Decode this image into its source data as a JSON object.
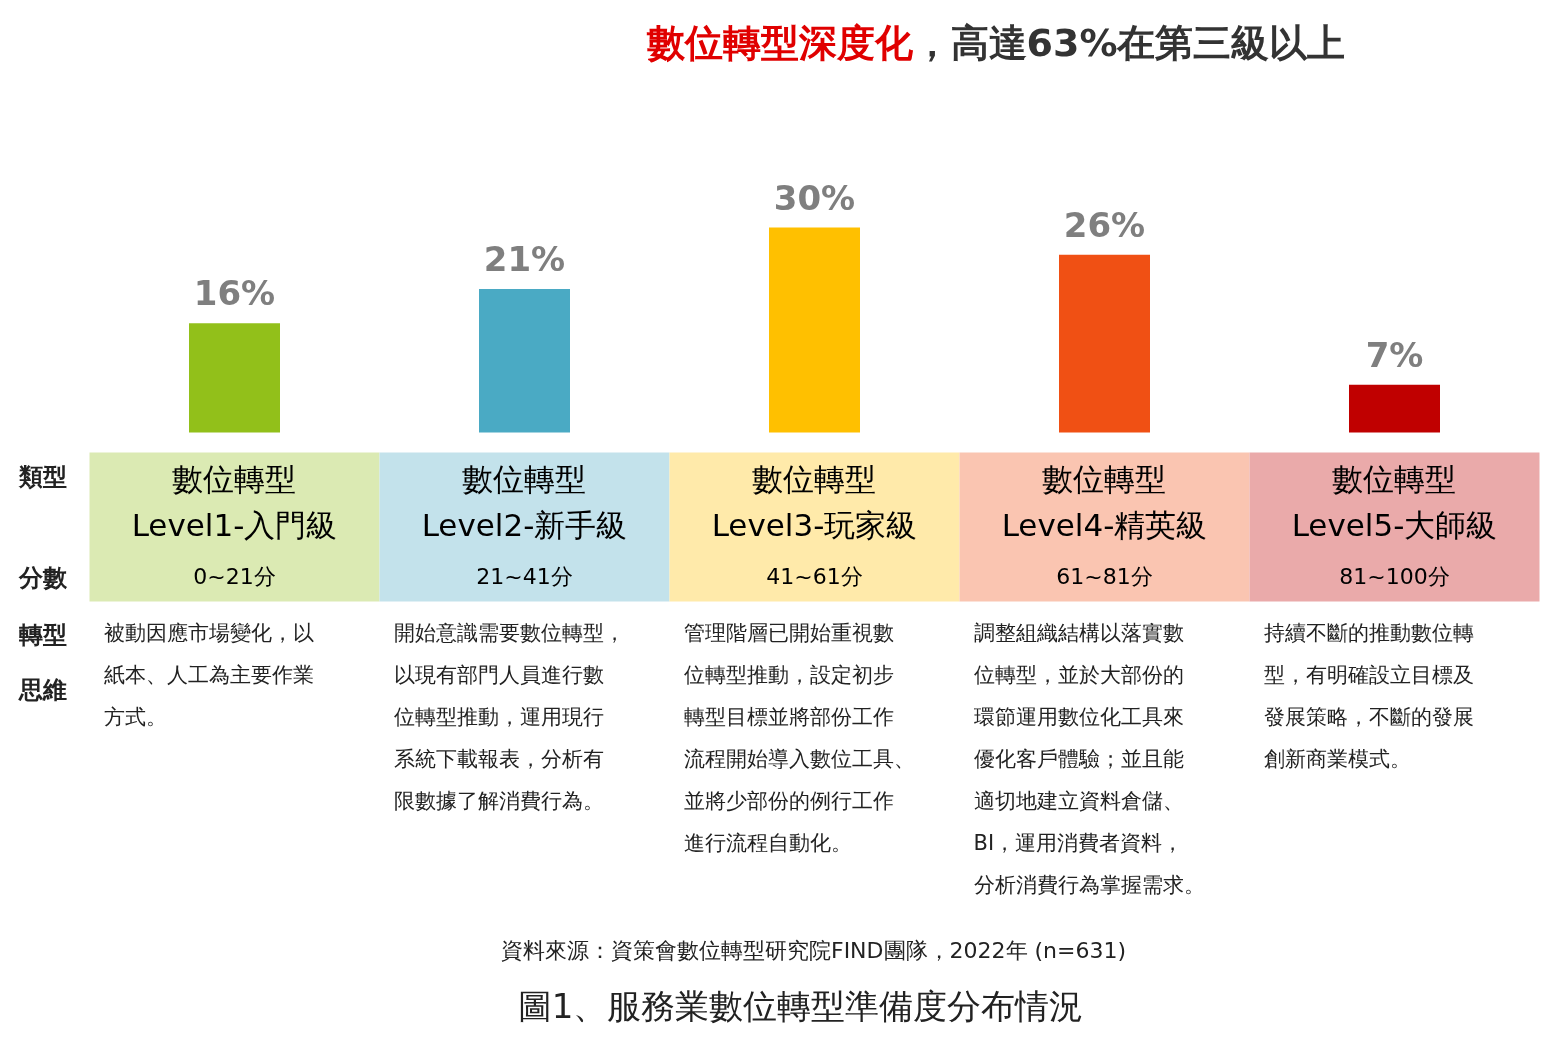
{
  "chart_data": {
    "type": "bar",
    "title": "數位轉型深度化，高達63%在第三級以上",
    "categories": [
      "數位轉型\nLevel1-入門級",
      "數位轉型\nLevel2-新手級",
      "數位轉型\nLevel3-玩家級",
      "數位轉型\nLevel4-精英級",
      "數位轉型\nLevel5-大師級"
    ],
    "values": [
      16,
      21,
      30,
      26,
      7
    ],
    "colors": [
      "#92c01a",
      "#4aaac4",
      "#ffc000",
      "#f05014",
      "#c00000"
    ],
    "value_labels": [
      "16%",
      "21%",
      "30%",
      "26%",
      "7%"
    ],
    "annotations": [
      "類型",
      "分數",
      "轉型",
      "思維",
      "0~21分",
      "21~41分",
      "41~61分",
      "61~81分",
      "81~100分",
      "被動因應市場變化，以紙本、人工為主要作業方式。",
      "開始意識需要數位轉型，以現有部門人員進行數位轉型推動，運用現行系統下載報表，分析有限數據了解消費行為。",
      "管理階層已開始重視數位轉型推動，設定初步轉型目標並將部份工作流程開始導入數位工具、並將少部份的例行工作進行流程自動化。",
      "調整組織結構以落實數位轉型，並於大部份的環節運用數位化工具來優化客戶體驗；並且能適切地建立資料倉儲、BI，運用消費者資料，分析消費行為掌握需求。",
      "持續不斷的推動數位轉型，有明確設立目標及發展策略，不斷的發展創新商業模式。",
      "資料來源：資策會數位轉型研究院FIND團隊，2022年   (n=631)",
      "圖1、服務業數位轉型準備度分布情況"
    ]
  }
}
